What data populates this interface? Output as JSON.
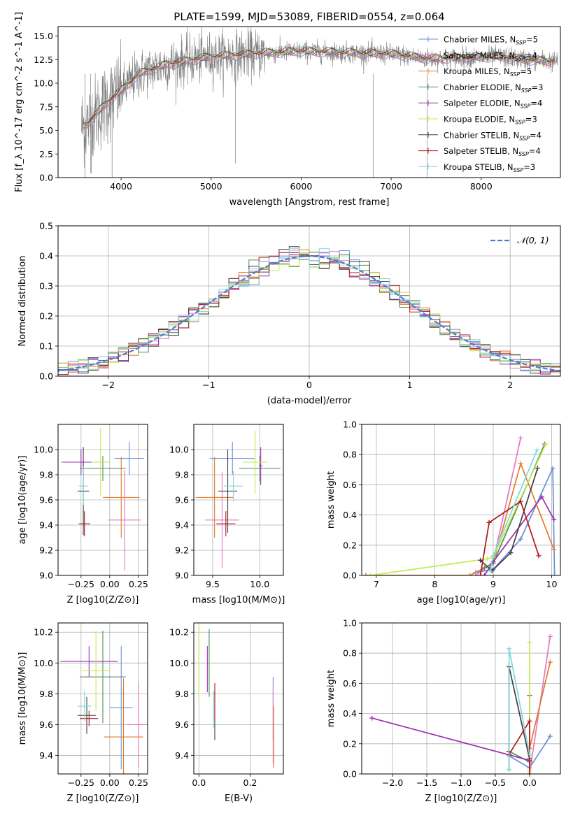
{
  "figure": {
    "title": "PLATE=1599, MJD=53089, FIBERID=0554, z=0.064"
  },
  "models": [
    {
      "name": "Chabrier MILES",
      "nssp": "5",
      "color": "#6a8fd8"
    },
    {
      "name": "Salpeter MILES",
      "nssp": "4",
      "color": "#e377c2"
    },
    {
      "name": "Kroupa MILES",
      "nssp": "5",
      "color": "#e07b2a"
    },
    {
      "name": "Chabrier ELODIE",
      "nssp": "3",
      "color": "#4f8f5a"
    },
    {
      "name": "Salpeter ELODIE",
      "nssp": "4",
      "color": "#9b30b0"
    },
    {
      "name": "Kroupa ELODIE",
      "nssp": "3",
      "color": "#c8e850"
    },
    {
      "name": "Chabrier STELIB",
      "nssp": "4",
      "color": "#404040"
    },
    {
      "name": "Salpeter STELIB",
      "nssp": "4",
      "color": "#b0181a"
    },
    {
      "name": "Kroupa STELIB",
      "nssp": "3",
      "color": "#7fd7de"
    }
  ],
  "chart_data": [
    {
      "id": "spectrum",
      "type": "line",
      "xlabel": "wavelength [Angstrom, rest frame]",
      "ylabel": "Flux [f_λ 10^-17 erg cm^-2 s^-1 A^-1]",
      "xlim": [
        3300,
        8880
      ],
      "ylim": [
        0,
        16
      ],
      "xticks": [
        4000,
        5000,
        6000,
        7000,
        8000
      ],
      "yticks": [
        0.0,
        2.5,
        5.0,
        7.5,
        10.0,
        12.5,
        15.0
      ],
      "data_color": "#808080",
      "continuum_x": [
        3600,
        3700,
        3850,
        4000,
        4200,
        4500,
        4800,
        5000,
        5300,
        5600,
        6000,
        6300,
        6600,
        7000,
        7400,
        7800,
        8200,
        8500,
        8800
      ],
      "continuum_y": [
        5.5,
        6.5,
        8.0,
        9.2,
        11.0,
        12.0,
        12.5,
        12.8,
        13.0,
        13.2,
        13.4,
        13.3,
        13.2,
        13.1,
        12.6,
        12.7,
        12.8,
        12.5,
        12.3
      ],
      "legend_loc": "upper right"
    },
    {
      "id": "residuals",
      "type": "histogram",
      "xlabel": "(data-model)/error",
      "ylabel": "Normed distribution",
      "xlim": [
        -2.5,
        2.5
      ],
      "ylim": [
        0,
        0.5
      ],
      "xticks": [
        -2,
        -1,
        0,
        1,
        2
      ],
      "yticks": [
        0.0,
        0.1,
        0.2,
        0.3,
        0.4,
        0.5
      ],
      "gaussian_label": "𝒩(0, 1)",
      "gaussian_color": "#4a7fcf",
      "legend_loc": "upper right"
    },
    {
      "id": "age_vs_Z",
      "type": "errorbar",
      "xlabel": "Z [log10(Z/Z⊙)]",
      "ylabel": "age [log10(age/yr)]",
      "xlim": [
        -0.45,
        0.33
      ],
      "ylim": [
        9.0,
        10.2
      ],
      "xticks": [
        -0.25,
        0.0,
        0.25
      ],
      "yticks": [
        9.0,
        9.2,
        9.4,
        9.6,
        9.8,
        10.0
      ],
      "points": [
        {
          "m": 0,
          "x": 0.17,
          "y": 9.93,
          "xe": 0.13,
          "ye": 0.13
        },
        {
          "m": 1,
          "x": 0.13,
          "y": 9.44,
          "xe": 0.14,
          "ye": 0.4
        },
        {
          "m": 2,
          "x": 0.1,
          "y": 9.62,
          "xe": 0.16,
          "ye": 0.32
        },
        {
          "m": 3,
          "x": -0.06,
          "y": 9.85,
          "xe": 0.2,
          "ye": 0.1
        },
        {
          "m": 4,
          "x": -0.25,
          "y": 9.9,
          "xe": 0.17,
          "ye": 0.1
        },
        {
          "m": 5,
          "x": -0.08,
          "y": 9.9,
          "xe": 0.08,
          "ye": 0.27
        },
        {
          "m": 6,
          "x": -0.23,
          "y": 9.67,
          "xe": 0.05,
          "ye": 0.35
        },
        {
          "m": 7,
          "x": -0.22,
          "y": 9.41,
          "xe": 0.05,
          "ye": 0.1
        },
        {
          "m": 8,
          "x": -0.23,
          "y": 9.71,
          "xe": 0.04,
          "ye": 0.15
        }
      ]
    },
    {
      "id": "age_vs_mass",
      "type": "errorbar",
      "xlabel": "mass [log10(M/M⊙)]",
      "ylabel": "",
      "xlim": [
        9.3,
        10.25
      ],
      "ylim": [
        9.0,
        10.2
      ],
      "xticks": [
        9.5,
        10.0
      ],
      "yticks": [
        9.0,
        9.2,
        9.4,
        9.6,
        9.8,
        10.0
      ],
      "points": [
        {
          "m": 0,
          "x": 9.71,
          "y": 9.93,
          "xe": 0.24,
          "ye": 0.13
        },
        {
          "m": 1,
          "x": 9.6,
          "y": 9.44,
          "xe": 0.18,
          "ye": 0.38
        },
        {
          "m": 2,
          "x": 9.52,
          "y": 9.62,
          "xe": 0.2,
          "ye": 0.32
        },
        {
          "m": 3,
          "x": 10.0,
          "y": 9.85,
          "xe": 0.22,
          "ye": 0.1
        },
        {
          "m": 4,
          "x": 10.01,
          "y": 9.87,
          "xe": 0.02,
          "ye": 0.15
        },
        {
          "m": 5,
          "x": 9.95,
          "y": 9.9,
          "xe": 0.13,
          "ye": 0.25
        },
        {
          "m": 6,
          "x": 9.66,
          "y": 9.67,
          "xe": 0.1,
          "ye": 0.33
        },
        {
          "m": 7,
          "x": 9.64,
          "y": 9.41,
          "xe": 0.1,
          "ye": 0.1
        },
        {
          "m": 8,
          "x": 9.72,
          "y": 9.71,
          "xe": 0.1,
          "ye": 0.12
        }
      ]
    },
    {
      "id": "weight_vs_age",
      "type": "line",
      "xlabel": "age [log10(age/yr)]",
      "ylabel": "mass weight",
      "xlim": [
        6.75,
        10.15
      ],
      "ylim": [
        0,
        1.0
      ],
      "xticks": [
        7,
        8,
        9,
        10
      ],
      "yticks": [
        0.0,
        0.2,
        0.4,
        0.6,
        0.8,
        1.0
      ],
      "series": [
        {
          "m": 0,
          "x": [
            8.7,
            9.0,
            9.47,
            10.02,
            10.05
          ],
          "y": [
            0.02,
            0.04,
            0.24,
            0.71,
            0.0
          ]
        },
        {
          "m": 1,
          "x": [
            8.7,
            9.0,
            9.47
          ],
          "y": [
            0.0,
            0.09,
            0.91
          ]
        },
        {
          "m": 2,
          "x": [
            6.82,
            8.6,
            9.0,
            9.47,
            10.04
          ],
          "y": [
            0.0,
            0.0,
            0.08,
            0.74,
            0.17
          ]
        },
        {
          "m": 3,
          "x": [
            8.85,
            9.0,
            9.88
          ],
          "y": [
            0.05,
            0.08,
            0.87
          ]
        },
        {
          "m": 4,
          "x": [
            8.85,
            9.0,
            9.83,
            10.04
          ],
          "y": [
            0.0,
            0.09,
            0.52,
            0.37
          ]
        },
        {
          "m": 5,
          "x": [
            6.9,
            8.9,
            9.0,
            9.9
          ],
          "y": [
            0.0,
            0.11,
            0.12,
            0.87
          ]
        },
        {
          "m": 6,
          "x": [
            8.78,
            8.98,
            9.3,
            9.76
          ],
          "y": [
            0.1,
            0.03,
            0.15,
            0.71
          ]
        },
        {
          "m": 7,
          "x": [
            8.78,
            8.93,
            9.47,
            9.78
          ],
          "y": [
            0.0,
            0.35,
            0.49,
            0.13
          ]
        },
        {
          "m": 8,
          "x": [
            8.95,
            9.0,
            9.75
          ],
          "y": [
            0.03,
            0.13,
            0.83
          ]
        }
      ]
    },
    {
      "id": "mass_vs_Z",
      "type": "errorbar",
      "xlabel": "Z [log10(Z/Z⊙)]",
      "ylabel": "mass [log10(M/M⊙)]",
      "xlim": [
        -0.45,
        0.33
      ],
      "ylim": [
        9.28,
        10.26
      ],
      "xticks": [
        -0.25,
        0.0,
        0.25
      ],
      "yticks": [
        9.4,
        9.6,
        9.8,
        10.0,
        10.2
      ],
      "points": [
        {
          "m": 0,
          "x": 0.1,
          "y": 9.71,
          "xe": 0.1,
          "ye": 0.4
        },
        {
          "m": 1,
          "x": 0.25,
          "y": 9.6,
          "xe": 0.1,
          "ye": 0.28
        },
        {
          "m": 2,
          "x": 0.12,
          "y": 9.52,
          "xe": 0.17,
          "ye": 0.38
        },
        {
          "m": 3,
          "x": -0.06,
          "y": 9.91,
          "xe": 0.2,
          "ye": 0.3
        },
        {
          "m": 4,
          "x": -0.18,
          "y": 10.01,
          "xe": 0.25,
          "ye": 0.1
        },
        {
          "m": 5,
          "x": -0.12,
          "y": 9.95,
          "xe": 0.12,
          "ye": 0.26
        },
        {
          "m": 6,
          "x": -0.2,
          "y": 9.66,
          "xe": 0.08,
          "ye": 0.12
        },
        {
          "m": 7,
          "x": -0.18,
          "y": 9.64,
          "xe": 0.08,
          "ye": 0.05
        },
        {
          "m": 8,
          "x": -0.22,
          "y": 9.72,
          "xe": 0.06,
          "ye": 0.1
        }
      ]
    },
    {
      "id": "mass_vs_ebv",
      "type": "errorbar",
      "xlabel": "E(B-V)",
      "ylabel": "",
      "xlim": [
        -0.02,
        0.33
      ],
      "ylim": [
        9.28,
        10.26
      ],
      "xticks": [
        0.0,
        0.2
      ],
      "yticks": [
        9.4,
        9.6,
        9.8,
        10.0,
        10.2
      ],
      "points": [
        {
          "m": 0,
          "x": 0.29,
          "y": 9.71,
          "xe": 0.0,
          "ye": 0.2
        },
        {
          "m": 1,
          "x": 0.29,
          "y": 9.6,
          "xe": 0.0,
          "ye": 0.25
        },
        {
          "m": 2,
          "x": 0.292,
          "y": 9.52,
          "xe": 0.0,
          "ye": 0.2
        },
        {
          "m": 3,
          "x": 0.04,
          "y": 10.0,
          "xe": 0.0,
          "ye": 0.22
        },
        {
          "m": 4,
          "x": 0.033,
          "y": 9.96,
          "xe": 0.0,
          "ye": 0.15
        },
        {
          "m": 5,
          "x": 0.0,
          "y": 10.0,
          "xe": 0.0,
          "ye": 0.25
        },
        {
          "m": 6,
          "x": 0.062,
          "y": 9.66,
          "xe": 0.0,
          "ye": 0.16
        },
        {
          "m": 7,
          "x": 0.062,
          "y": 9.75,
          "xe": 0.0,
          "ye": 0.12
        },
        {
          "m": 8,
          "x": 0.058,
          "y": 9.7,
          "xe": 0.0,
          "ye": 0.12
        }
      ]
    },
    {
      "id": "weight_vs_Z",
      "type": "line",
      "xlabel": "Z [log10(Z/Z⊙)]",
      "ylabel": "mass weight",
      "xlim": [
        -2.45,
        0.45
      ],
      "ylim": [
        0,
        1.0
      ],
      "xticks": [
        -2.0,
        -1.5,
        -1.0,
        -0.5,
        0.0
      ],
      "yticks": [
        0.0,
        0.2,
        0.4,
        0.6,
        0.8,
        1.0
      ],
      "series": [
        {
          "m": 0,
          "x": [
            -0.3,
            0.0,
            0.3
          ],
          "y": [
            0.12,
            0.04,
            0.25
          ]
        },
        {
          "m": 1,
          "x": [
            0.0,
            0.3
          ],
          "y": [
            0.0,
            0.91
          ]
        },
        {
          "m": 2,
          "x": [
            0.0,
            0.3
          ],
          "y": [
            0.17,
            0.74
          ]
        },
        {
          "m": 3,
          "x": [
            -0.3,
            -0.3,
            0.0
          ],
          "y": [
            0.03,
            0.15,
            0.08
          ]
        },
        {
          "m": 4,
          "x": [
            -2.3,
            0.0,
            0.0
          ],
          "y": [
            0.37,
            0.09,
            0.52
          ]
        },
        {
          "m": 5,
          "x": [
            0.0,
            0.0,
            0.0
          ],
          "y": [
            0.02,
            0.12,
            0.87
          ]
        },
        {
          "m": 6,
          "x": [
            -0.3,
            -0.3,
            0.0
          ],
          "y": [
            0.15,
            0.71,
            0.1
          ]
        },
        {
          "m": 7,
          "x": [
            -0.3,
            0.0,
            0.0
          ],
          "y": [
            0.13,
            0.35,
            0.0
          ]
        },
        {
          "m": 8,
          "x": [
            -0.3,
            -0.3,
            0.0
          ],
          "y": [
            0.03,
            0.83,
            0.13
          ]
        }
      ]
    }
  ]
}
